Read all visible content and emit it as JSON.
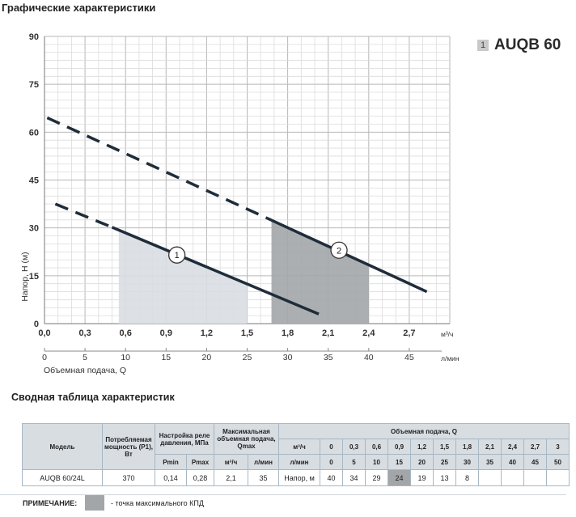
{
  "page_title": "Графические характеристики",
  "model_badge": {
    "number": "1",
    "name": "AUQB 60"
  },
  "chart_data": {
    "type": "line",
    "title": "",
    "ylabel": "Напор, Н (м)",
    "xlabel": "Объемная подача, Q",
    "x_unit_primary": "м³/ч",
    "x_unit_secondary": "л/мин",
    "ylim": [
      0,
      90
    ],
    "xlim": [
      0,
      3.0
    ],
    "grid": true,
    "y_ticks": [
      "0",
      "15",
      "30",
      "45",
      "60",
      "75",
      "90"
    ],
    "x_ticks_primary": [
      "0,0",
      "0,3",
      "0,6",
      "0,9",
      "1,2",
      "1,5",
      "1,8",
      "2,1",
      "2,4",
      "2,7"
    ],
    "x_ticks_secondary": [
      "0",
      "5",
      "10",
      "15",
      "20",
      "25",
      "30",
      "35",
      "40",
      "45"
    ],
    "series": [
      {
        "name": "1",
        "dashed_points": [
          [
            0.08,
            37.5
          ],
          [
            0.5,
            30.2
          ]
        ],
        "solid_points": [
          [
            0.5,
            30.2
          ],
          [
            2.03,
            3.0
          ]
        ],
        "label_at": [
          0.98,
          21.5
        ],
        "shaded_range": [
          0.55,
          1.5
        ]
      },
      {
        "name": "2",
        "dashed_points": [
          [
            0.02,
            64.5
          ],
          [
            1.65,
            33.0
          ]
        ],
        "solid_points": [
          [
            1.65,
            33.0
          ],
          [
            2.83,
            10.0
          ]
        ],
        "label_at": [
          2.18,
          23.0
        ],
        "shaded_range": [
          1.68,
          2.4
        ]
      }
    ]
  },
  "summary_title": "Сводная таблица характеристик",
  "table": {
    "model_header": "Модель",
    "power_header": "Потребляемая мощность (P1), Вт",
    "relay_header": "Настройка реле давления, МПа",
    "pmin": "Pmin",
    "pmax": "Pmax",
    "qmax_header": "Максимальная объемная подача, Qmax",
    "qmax_unit1": "м³/ч",
    "qmax_unit2": "л/мин",
    "flow_header": "Объемная подача, Q",
    "flow_unit1": "м³/ч",
    "flow_unit2": "л/мин",
    "flow_m3h": [
      "0",
      "0,3",
      "0,6",
      "0,9",
      "1,2",
      "1,5",
      "1,8",
      "2,1",
      "2,4",
      "2,7",
      "3"
    ],
    "flow_lmin": [
      "0",
      "5",
      "10",
      "15",
      "20",
      "25",
      "30",
      "35",
      "40",
      "45",
      "50"
    ],
    "row": {
      "model": "AUQB 60/24L",
      "power": "370",
      "pmin": "0,14",
      "pmax": "0,28",
      "qmax_m3h": "2,1",
      "qmax_lmin": "35",
      "head_label": "Напор, м",
      "heads": [
        "40",
        "34",
        "29",
        "24",
        "19",
        "13",
        "8",
        "",
        "",
        "",
        ""
      ]
    }
  },
  "note": {
    "label": "ПРИМЕЧАНИЕ:",
    "text": "- точка максимального КПД"
  },
  "colors": {
    "best_efficiency": "#a3a6a9",
    "curve": "#1f2d3a"
  }
}
